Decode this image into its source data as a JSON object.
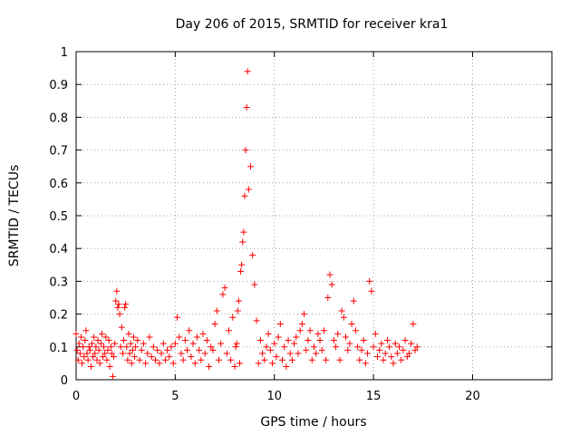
{
  "chart_data": {
    "type": "scatter",
    "title": "Day 206 of 2015, SRMTID for receiver kra1",
    "xlabel": "GPS time / hours",
    "ylabel": "SRMTID / TECUs",
    "xlim": [
      0,
      24
    ],
    "ylim": [
      0,
      1
    ],
    "xticks": [
      0,
      5,
      10,
      15,
      20
    ],
    "yticks": [
      0,
      0.1,
      0.2,
      0.3,
      0.4,
      0.5,
      0.6,
      0.7,
      0.8,
      0.9,
      1
    ],
    "xtick_labels": [
      "0",
      "5",
      "10",
      "15",
      "20"
    ],
    "ytick_labels": [
      "0",
      "0.1",
      "0.2",
      "0.3",
      "0.4",
      "0.5",
      "0.6",
      "0.7",
      "0.8",
      "0.9",
      "1"
    ],
    "grid": true,
    "marker": "+",
    "marker_color": "#ff0000",
    "series": [
      {
        "x": [
          0.0,
          0.05,
          0.1,
          0.15,
          0.2,
          0.25,
          0.3,
          0.35,
          0.4,
          0.45,
          0.5,
          0.55,
          0.6,
          0.65,
          0.7,
          0.75,
          0.8,
          0.85,
          0.9,
          0.95,
          1.0,
          1.05,
          1.1,
          1.15,
          1.2,
          1.25,
          1.3,
          1.35,
          1.4,
          1.45,
          1.5,
          1.55,
          1.6,
          1.65,
          1.7,
          1.75,
          1.8,
          1.85,
          1.9,
          1.95,
          2.0,
          2.05,
          2.1,
          2.15,
          2.2,
          2.25,
          2.3,
          2.35,
          2.4,
          2.45,
          2.5,
          2.55,
          2.6,
          2.65,
          2.7,
          2.75,
          2.8,
          2.85,
          2.9,
          2.95,
          3.0,
          3.1,
          3.2,
          3.3,
          3.4,
          3.5,
          3.6,
          3.7,
          3.8,
          3.9,
          4.0,
          4.1,
          4.2,
          4.3,
          4.4,
          4.5,
          4.6,
          4.7,
          4.8,
          4.9,
          5.0,
          5.1,
          5.2,
          5.3,
          5.4,
          5.5,
          5.6,
          5.7,
          5.8,
          5.9,
          6.0,
          6.1,
          6.2,
          6.3,
          6.4,
          6.5,
          6.6,
          6.7,
          6.8,
          6.9,
          7.0,
          7.1,
          7.2,
          7.3,
          7.4,
          7.5,
          7.6,
          7.7,
          7.8,
          7.9,
          8.0,
          8.05,
          8.1,
          8.15,
          8.2,
          8.25,
          8.3,
          8.35,
          8.4,
          8.45,
          8.5,
          8.55,
          8.6,
          8.65,
          8.7,
          8.8,
          8.9,
          9.0,
          9.1,
          9.2,
          9.3,
          9.4,
          9.5,
          9.6,
          9.7,
          9.8,
          9.9,
          10.0,
          10.1,
          10.2,
          10.3,
          10.4,
          10.5,
          10.6,
          10.7,
          10.8,
          10.9,
          11.0,
          11.1,
          11.2,
          11.3,
          11.4,
          11.5,
          11.6,
          11.7,
          11.8,
          11.9,
          12.0,
          12.1,
          12.2,
          12.3,
          12.4,
          12.5,
          12.6,
          12.7,
          12.8,
          12.9,
          13.0,
          13.1,
          13.2,
          13.3,
          13.4,
          13.5,
          13.6,
          13.7,
          13.8,
          13.9,
          14.0,
          14.1,
          14.2,
          14.3,
          14.4,
          14.5,
          14.6,
          14.7,
          14.8,
          14.9,
          15.0,
          15.1,
          15.2,
          15.3,
          15.4,
          15.5,
          15.6,
          15.7,
          15.8,
          15.9,
          16.0,
          16.1,
          16.2,
          16.3,
          16.4,
          16.5,
          16.6,
          16.7,
          16.8,
          16.9,
          17.0,
          17.1,
          17.2
        ],
        "y": [
          0.14,
          0.09,
          0.06,
          0.11,
          0.08,
          0.13,
          0.05,
          0.1,
          0.07,
          0.12,
          0.15,
          0.08,
          0.06,
          0.1,
          0.09,
          0.04,
          0.11,
          0.07,
          0.13,
          0.08,
          0.1,
          0.06,
          0.12,
          0.09,
          0.05,
          0.11,
          0.14,
          0.07,
          0.1,
          0.08,
          0.13,
          0.06,
          0.09,
          0.12,
          0.04,
          0.1,
          0.08,
          0.01,
          0.07,
          0.11,
          0.24,
          0.27,
          0.22,
          0.23,
          0.2,
          0.1,
          0.16,
          0.08,
          0.12,
          0.22,
          0.23,
          0.1,
          0.06,
          0.14,
          0.08,
          0.11,
          0.05,
          0.09,
          0.13,
          0.07,
          0.1,
          0.12,
          0.06,
          0.09,
          0.11,
          0.05,
          0.08,
          0.13,
          0.07,
          0.1,
          0.06,
          0.09,
          0.05,
          0.08,
          0.11,
          0.06,
          0.09,
          0.07,
          0.1,
          0.05,
          0.11,
          0.19,
          0.13,
          0.08,
          0.06,
          0.12,
          0.09,
          0.15,
          0.07,
          0.11,
          0.05,
          0.13,
          0.09,
          0.06,
          0.14,
          0.08,
          0.12,
          0.04,
          0.1,
          0.09,
          0.17,
          0.21,
          0.06,
          0.11,
          0.26,
          0.28,
          0.08,
          0.15,
          0.06,
          0.19,
          0.04,
          0.1,
          0.11,
          0.21,
          0.24,
          0.05,
          0.33,
          0.35,
          0.42,
          0.45,
          0.56,
          0.7,
          0.83,
          0.94,
          0.58,
          0.65,
          0.38,
          0.29,
          0.18,
          0.05,
          0.12,
          0.08,
          0.06,
          0.1,
          0.14,
          0.09,
          0.05,
          0.11,
          0.07,
          0.13,
          0.17,
          0.06,
          0.1,
          0.04,
          0.12,
          0.08,
          0.06,
          0.11,
          0.13,
          0.08,
          0.15,
          0.17,
          0.2,
          0.09,
          0.12,
          0.15,
          0.06,
          0.1,
          0.08,
          0.14,
          0.12,
          0.09,
          0.15,
          0.06,
          0.25,
          0.32,
          0.29,
          0.12,
          0.1,
          0.14,
          0.06,
          0.21,
          0.19,
          0.13,
          0.09,
          0.11,
          0.17,
          0.24,
          0.15,
          0.1,
          0.06,
          0.09,
          0.12,
          0.05,
          0.08,
          0.3,
          0.27,
          0.1,
          0.14,
          0.07,
          0.09,
          0.11,
          0.06,
          0.08,
          0.12,
          0.1,
          0.07,
          0.05,
          0.11,
          0.08,
          0.1,
          0.06,
          0.09,
          0.12,
          0.07,
          0.08,
          0.11,
          0.17,
          0.09,
          0.1
        ]
      }
    ]
  }
}
